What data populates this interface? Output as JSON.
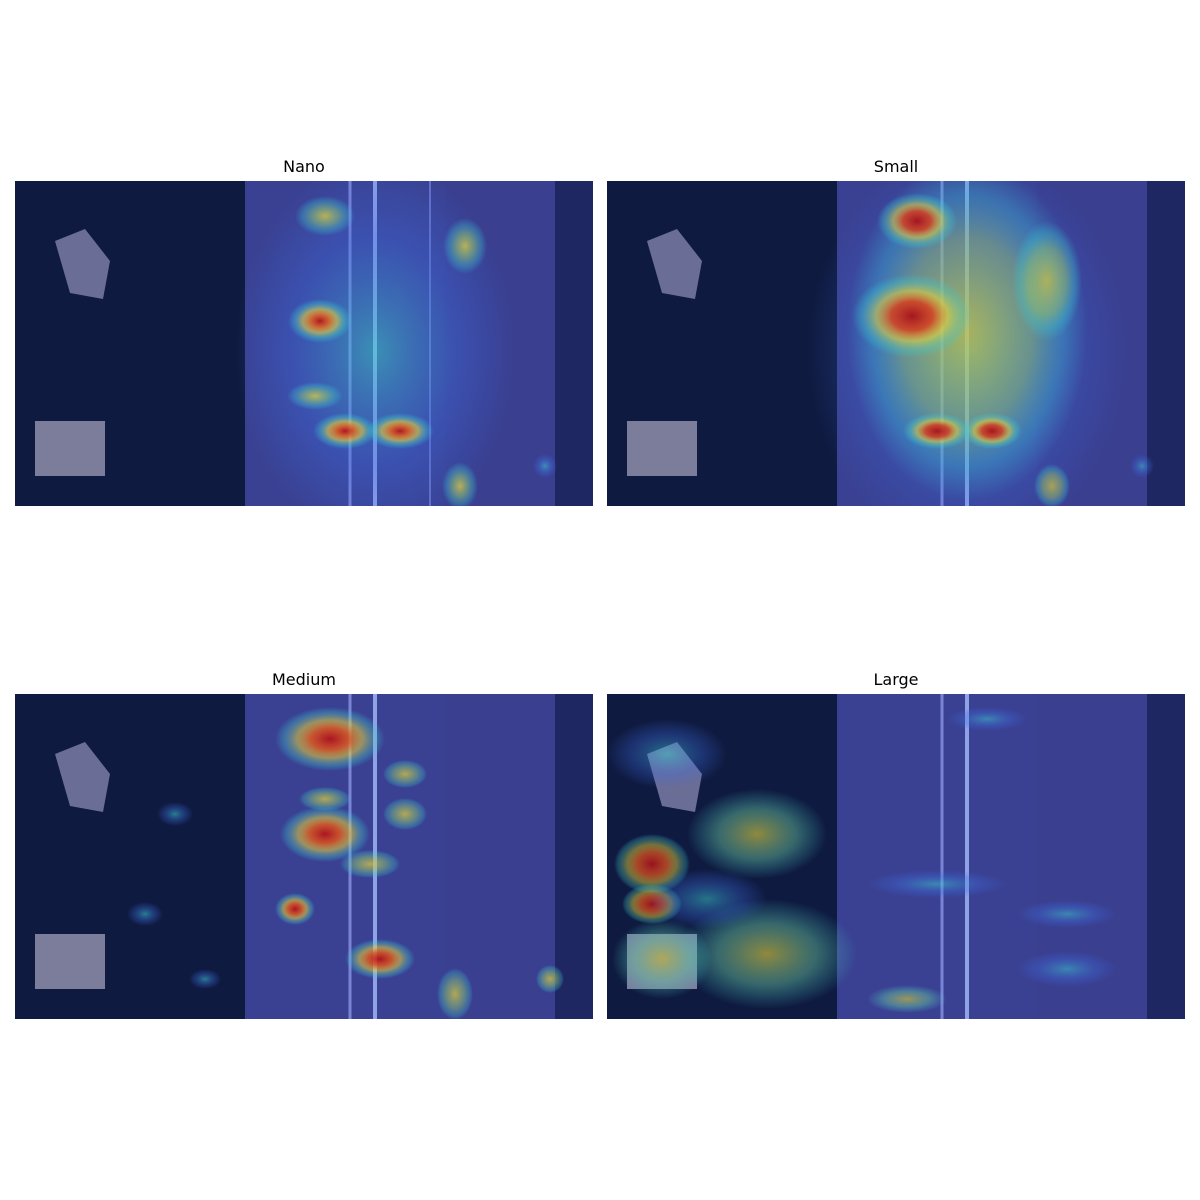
{
  "panels": [
    {
      "title": "Nano"
    },
    {
      "title": "Small"
    },
    {
      "title": "Medium"
    },
    {
      "title": "Large"
    }
  ],
  "image_description": "Aerial view of a multi-lane road with trees on the left, overlaid with a jet-colormap attention heatmap",
  "colors": {
    "background_blue": "#1a1f6e",
    "heat_red": "#c81e1e",
    "heat_yellow": "#e6d23c",
    "heat_cyan": "#3ccfd2"
  }
}
